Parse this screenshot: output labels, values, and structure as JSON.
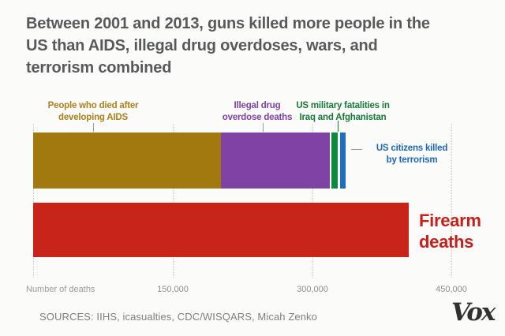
{
  "title": {
    "text": "Between 2001 and 2013, guns killed more people in the US than AIDS, illegal drug overdoses, wars, and terrorism combined",
    "lines": [
      "Between 2001 and 2013, guns killed more people in the",
      "US than AIDS, illegal drug overdoses, wars, and",
      "terrorism combined"
    ],
    "color": "#58595b"
  },
  "annotations": {
    "aids": {
      "line1": "People who died after",
      "line2": "developing AIDS",
      "color": "#ab811a"
    },
    "drugs": {
      "line1": "Illegal drug",
      "line2": "overdose deaths",
      "color": "#8040a8"
    },
    "military": {
      "line1": "US military fatalities in",
      "line2": "Iraq and Afghanistan",
      "color": "#167a38"
    },
    "terrorism": {
      "line1": "US citizens killed",
      "line2": "by terrorism",
      "color": "#1a67b8"
    },
    "firearm": {
      "line1": "Firearm",
      "line2": "deaths",
      "color": "#c5201a"
    }
  },
  "axis": {
    "label": "Number of deaths",
    "ticks": [
      "150,000",
      "300,000",
      "450,000"
    ]
  },
  "footer": {
    "sources": "SOURCES: IIHS, icasualties, CDC/WISQARS, Micah Zenko",
    "logo": "Vox"
  },
  "chart_data": {
    "type": "bar",
    "orientation": "horizontal",
    "stacked_top_bar": true,
    "title": "Between 2001 and 2013, guns killed more people in the US than AIDS, illegal drug overdoses, wars, and terrorism combined",
    "xlabel": "Number of deaths",
    "xlim": [
      0,
      500000
    ],
    "x_ticks": [
      150000,
      300000,
      450000
    ],
    "x_tick_labels": [
      "150,000",
      "300,000",
      "450,000"
    ],
    "grid": "dotted-vertical",
    "legend_position": "direct-labels-with-leader-lines",
    "bars": [
      {
        "name": "non-gun-deaths-combined",
        "segments": [
          {
            "label": "People who died after developing AIDS",
            "value": 202000,
            "color": "#a1790f"
          },
          {
            "label": "Illegal drug overdose deaths",
            "value": 117000,
            "color": "#7e43a5"
          },
          {
            "label": "US military fatalities in Iraq and Afghanistan",
            "value": 6700,
            "color": "#0e8a3e"
          },
          {
            "label": "US citizens killed by terrorism",
            "value": 3400,
            "color": "#1d6fc2"
          }
        ]
      },
      {
        "name": "firearm-deaths",
        "segments": [
          {
            "label": "Firearm deaths",
            "value": 404000,
            "color": "#c9241a"
          }
        ]
      }
    ]
  }
}
